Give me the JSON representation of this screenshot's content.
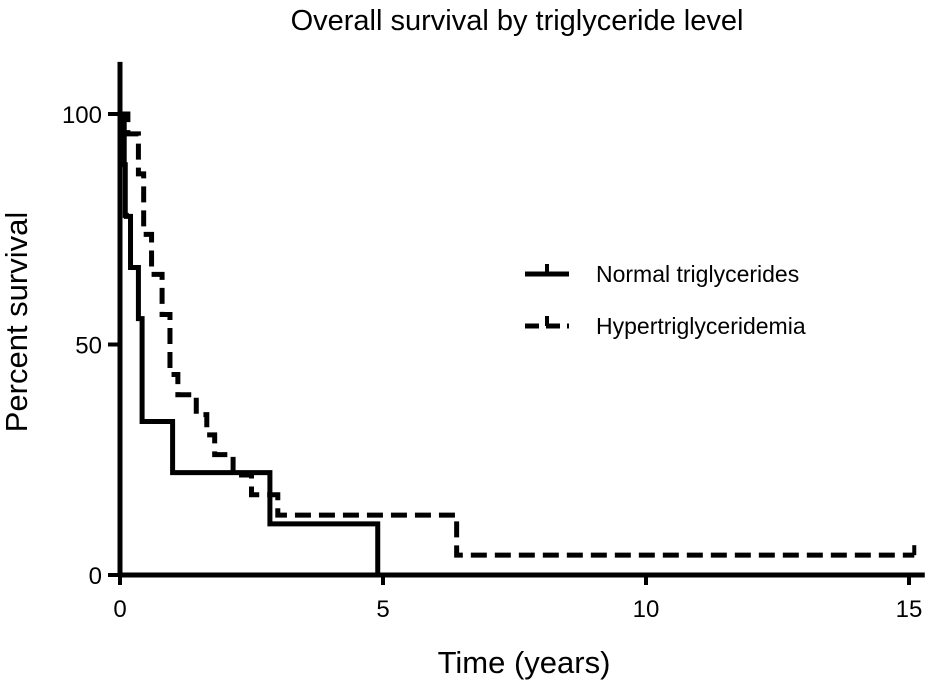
{
  "chart_data": {
    "type": "line",
    "step": true,
    "title": "Overall survival by triglyceride level",
    "xlabel": "Time (years)",
    "ylabel": "Percent survival",
    "xlim": [
      0,
      15.3
    ],
    "ylim": [
      0,
      110
    ],
    "xticks": [
      0,
      5,
      10,
      15
    ],
    "yticks": [
      0,
      50,
      100
    ],
    "grid": false,
    "legend_position": "right",
    "series": [
      {
        "name": "Normal triglycerides",
        "style": "solid",
        "color": "#000000",
        "x": [
          0,
          0.08,
          0.1,
          0.12,
          0.2,
          0.35,
          0.42,
          1.0,
          2.85,
          4.9
        ],
        "y": [
          100,
          89,
          78,
          77.8,
          66.7,
          55.6,
          33.3,
          22.2,
          11.1,
          0
        ],
        "censored": []
      },
      {
        "name": "Hypertriglyceridemia",
        "style": "dashed",
        "color": "#000000",
        "x": [
          0,
          0.15,
          0.35,
          0.45,
          0.6,
          0.8,
          0.95,
          1.1,
          1.45,
          1.65,
          1.8,
          2.15,
          2.5,
          3.0,
          6.4
        ],
        "y": [
          100,
          95.7,
          87,
          73.9,
          65.2,
          56.5,
          43.5,
          39.1,
          34.8,
          30.4,
          26.1,
          21.7,
          17.4,
          13.0,
          4.3
        ],
        "end_x": 15.1,
        "censored": [
          {
            "x": 15.1,
            "y": 4.3
          }
        ]
      }
    ]
  }
}
